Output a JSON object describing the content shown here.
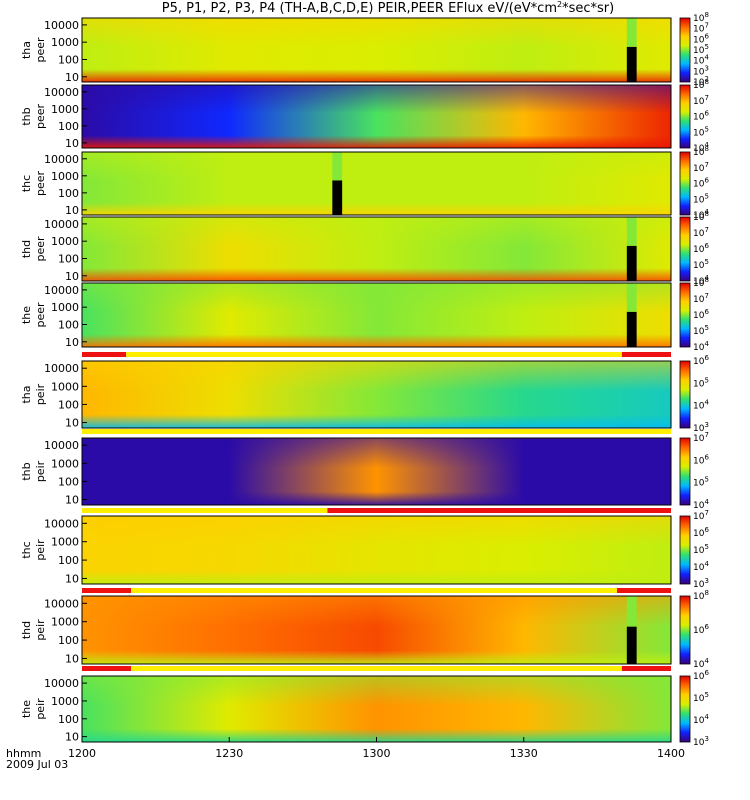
{
  "chart_data": {
    "type": "heatmap",
    "title": "P5, P1, P2, P3, P4 (TH-A,B,C,D,E) PEIR,PEER EFlux eV/(eV*cm^2*sec*sr)",
    "title_parts": {
      "prefix": "P5, P1, P2, P3, P4 (TH-A,B,C,D,E) PEIR,PEER EFlux eV/(eV*cm",
      "exp": "2",
      "suffix": "*sec*sr)"
    },
    "x_axis": {
      "label": "hhmm",
      "date": "2009 Jul 03",
      "ticks": [
        "1200",
        "1230",
        "1300",
        "1330",
        "1400"
      ],
      "range": [
        "12:00",
        "14:00"
      ]
    },
    "y_axis": {
      "scale": "log",
      "units": "eV",
      "ticks": [
        "10",
        "100",
        "1000",
        "10000"
      ],
      "range": [
        5,
        25000
      ]
    },
    "colorbar_scale": "log",
    "panels": [
      {
        "id": "tha-peer",
        "label": [
          "tha",
          "peer"
        ],
        "colorbar": {
          "min_exp": 2,
          "max_exp": 8,
          "labels": [
            "10^2",
            "10^3",
            "10^4",
            "10^5",
            "10^6",
            "10^7",
            "10^8"
          ]
        },
        "flag_bar": false
      },
      {
        "id": "thb-peer",
        "label": [
          "thb",
          "peer"
        ],
        "colorbar": {
          "min_exp": 4,
          "max_exp": 8,
          "labels": [
            "10^4",
            "10^5",
            "10^6",
            "10^7",
            "10^8"
          ]
        },
        "flag_bar": false
      },
      {
        "id": "thc-peer",
        "label": [
          "thc",
          "peer"
        ],
        "colorbar": {
          "min_exp": 4,
          "max_exp": 8,
          "labels": [
            "10^4",
            "10^5",
            "10^6",
            "10^7",
            "10^8"
          ]
        },
        "flag_bar": false
      },
      {
        "id": "thd-peer",
        "label": [
          "thd",
          "peer"
        ],
        "colorbar": {
          "min_exp": 4,
          "max_exp": 8,
          "labels": [
            "10^4",
            "10^5",
            "10^6",
            "10^7",
            "10^8"
          ]
        },
        "flag_bar": false
      },
      {
        "id": "the-peer",
        "label": [
          "the",
          "peer"
        ],
        "colorbar": {
          "min_exp": 4,
          "max_exp": 8,
          "labels": [
            "10^4",
            "10^5",
            "10^6",
            "10^7",
            "10^8"
          ]
        },
        "flag_bar": true
      },
      {
        "id": "tha-peir",
        "label": [
          "tha",
          "peir"
        ],
        "colorbar": {
          "min_exp": 3,
          "max_exp": 6,
          "labels": [
            "10^3",
            "10^4",
            "10^5",
            "10^6"
          ]
        },
        "flag_bar": true
      },
      {
        "id": "thb-peir",
        "label": [
          "thb",
          "peir"
        ],
        "colorbar": {
          "min_exp": 4,
          "max_exp": 7,
          "labels": [
            "10^4",
            "10^5",
            "10^6",
            "10^7"
          ]
        },
        "flag_bar": true
      },
      {
        "id": "thc-peir",
        "label": [
          "thc",
          "peir"
        ],
        "colorbar": {
          "min_exp": 3,
          "max_exp": 7,
          "labels": [
            "10^3",
            "10^4",
            "10^5",
            "10^6",
            "10^7"
          ]
        },
        "flag_bar": true
      },
      {
        "id": "thd-peir",
        "label": [
          "thd",
          "peir"
        ],
        "colorbar": {
          "min_exp": 4,
          "max_exp": 8,
          "labels": [
            "10^4",
            "10^6",
            "10^8"
          ]
        },
        "flag_bar": true
      },
      {
        "id": "the-peir",
        "label": [
          "the",
          "peir"
        ],
        "colorbar": {
          "min_exp": 3,
          "max_exp": 6,
          "labels": [
            "10^3",
            "10^4",
            "10^5",
            "10^6"
          ]
        },
        "flag_bar": true
      }
    ],
    "flag_bars": [
      {
        "above_panel": "tha-peir",
        "segments": [
          {
            "from": "12:00",
            "to": "12:09",
            "color": "red"
          },
          {
            "from": "12:09",
            "to": "13:50",
            "color": "yellow"
          },
          {
            "from": "13:50",
            "to": "14:00",
            "color": "red"
          }
        ]
      },
      {
        "above_panel": "thb-peir",
        "segments": [
          {
            "from": "12:00",
            "to": "14:00",
            "color": "yellow"
          }
        ]
      },
      {
        "above_panel": "thc-peir",
        "segments": [
          {
            "from": "12:00",
            "to": "12:50",
            "color": "yellow"
          },
          {
            "from": "12:50",
            "to": "14:00",
            "color": "red"
          }
        ]
      },
      {
        "above_panel": "thd-peir",
        "segments": [
          {
            "from": "12:00",
            "to": "12:10",
            "color": "red"
          },
          {
            "from": "12:10",
            "to": "13:49",
            "color": "yellow"
          },
          {
            "from": "13:49",
            "to": "14:00",
            "color": "red"
          }
        ]
      },
      {
        "above_panel": "the-peir",
        "segments": [
          {
            "from": "12:00",
            "to": "12:10",
            "color": "red"
          },
          {
            "from": "12:10",
            "to": "13:50",
            "color": "yellow"
          },
          {
            "from": "13:50",
            "to": "14:00",
            "color": "red"
          }
        ]
      }
    ],
    "data_gaps": [
      {
        "panel": "tha-peer",
        "from": "13:51",
        "to": "13:53"
      },
      {
        "panel": "thc-peer",
        "from": "12:51",
        "to": "12:53"
      },
      {
        "panel": "thd-peer",
        "from": "13:51",
        "to": "13:53"
      },
      {
        "panel": "the-peer",
        "from": "13:51",
        "to": "13:53"
      },
      {
        "panel": "thd-peir",
        "from": "13:51",
        "to": "13:53"
      }
    ],
    "colors": {
      "flag_red": "#ee1111",
      "flag_yellow": "#ffee00",
      "gap": "#000000"
    }
  }
}
